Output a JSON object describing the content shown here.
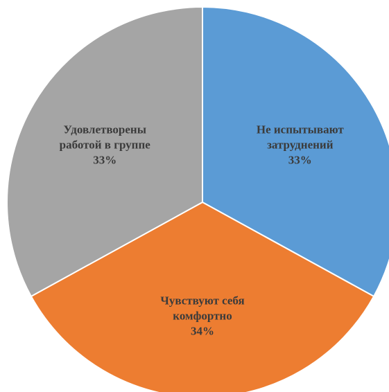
{
  "chart_data": {
    "type": "pie",
    "title": "",
    "slices": [
      {
        "label_lines": [
          "Не испытывают",
          "затруднений"
        ],
        "percent_label": "33%",
        "value": 33,
        "color": "#5b9bd5"
      },
      {
        "label_lines": [
          "Чувствуют себя",
          "комфортно"
        ],
        "percent_label": "34%",
        "value": 34,
        "color": "#ed7d31"
      },
      {
        "label_lines": [
          "Удовлетворены",
          "работой в группе"
        ],
        "percent_label": "33%",
        "value": 33,
        "color": "#a5a5a5"
      }
    ],
    "start_angle_deg": 0,
    "direction": "clockwise",
    "separator_color": "#ffffff",
    "legend": "none"
  }
}
